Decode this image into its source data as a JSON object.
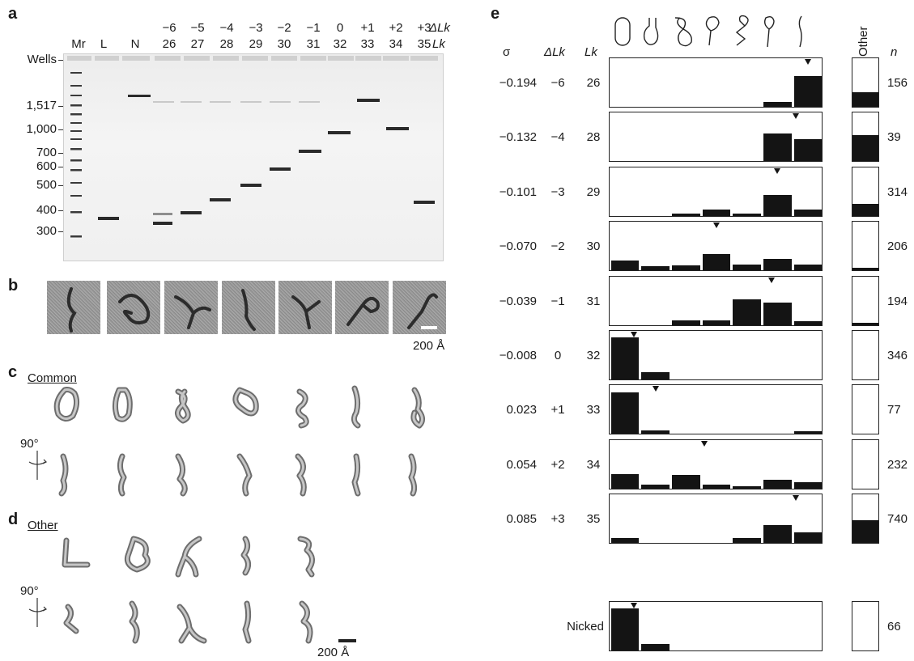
{
  "panel_labels": {
    "a": "a",
    "b": "b",
    "c": "c",
    "d": "d",
    "e": "e"
  },
  "panel_a": {
    "delta_lk_values": [
      "−6",
      "−5",
      "−4",
      "−3",
      "−2",
      "−1",
      "0",
      "+1",
      "+2",
      "+3"
    ],
    "delta_lk_header": "ΔLk",
    "lk_header": "Lk",
    "lane_labels": [
      "Mr",
      "L",
      "N",
      "26",
      "27",
      "28",
      "29",
      "30",
      "31",
      "32",
      "33",
      "34",
      "35"
    ],
    "size_markers": [
      "Wells",
      "1,517",
      "1,000",
      "700",
      "600",
      "500",
      "400",
      "300"
    ]
  },
  "panel_b": {
    "scale_label": "200 Å"
  },
  "panel_c": {
    "title": "Common",
    "rotation_label": "90°"
  },
  "panel_d": {
    "title": "Other",
    "rotation_label": "90°",
    "scale_label": "200 Å"
  },
  "panel_e": {
    "headers": {
      "sigma": "σ",
      "delta_lk": "ΔLk",
      "lk": "Lk",
      "other": "Other",
      "n": "n"
    },
    "shape_icons": [
      "open-circle-icon",
      "handled-loop-icon",
      "figure-eight-icon",
      "racquet-icon",
      "supercoil-loop-icon",
      "long-racquet-icon",
      "rod-icon"
    ],
    "rows": [
      {
        "sigma": "−0.194",
        "dlk": "−6",
        "lk": "26",
        "n": "156",
        "bars": [
          0,
          0,
          0,
          0,
          0,
          0.1,
          0.65
        ],
        "marker": 6.0,
        "other": 0.3
      },
      {
        "sigma": "−0.132",
        "dlk": "−4",
        "lk": "28",
        "n": "39",
        "bars": [
          0,
          0,
          0,
          0,
          0,
          0.58,
          0.47
        ],
        "marker": 5.6,
        "other": 0.55
      },
      {
        "sigma": "−0.101",
        "dlk": "−3",
        "lk": "29",
        "n": "314",
        "bars": [
          0,
          0,
          0.05,
          0.14,
          0.05,
          0.44,
          0.14
        ],
        "marker": 5.0,
        "other": 0.25
      },
      {
        "sigma": "−0.070",
        "dlk": "−2",
        "lk": "30",
        "n": "206",
        "bars": [
          0.2,
          0.09,
          0.1,
          0.35,
          0.13,
          0.24,
          0.13
        ],
        "marker": 3.0,
        "other": 0.05
      },
      {
        "sigma": "−0.039",
        "dlk": "−1",
        "lk": "31",
        "n": "194",
        "bars": [
          0,
          0,
          0.1,
          0.1,
          0.53,
          0.47,
          0.08
        ],
        "marker": 4.8,
        "other": 0.05
      },
      {
        "sigma": "−0.008",
        "dlk": "0",
        "lk": "32",
        "n": "346",
        "bars": [
          0.88,
          0.15,
          0,
          0,
          0,
          0,
          0
        ],
        "marker": 0.3,
        "other": 0
      },
      {
        "sigma": "0.023",
        "dlk": "+1",
        "lk": "33",
        "n": "77",
        "bars": [
          0.87,
          0.08,
          0,
          0,
          0,
          0,
          0.06
        ],
        "marker": 1.0,
        "other": 0
      },
      {
        "sigma": "0.054",
        "dlk": "+2",
        "lk": "34",
        "n": "232",
        "bars": [
          0.31,
          0.08,
          0.29,
          0.08,
          0.04,
          0.18,
          0.14
        ],
        "marker": 2.6,
        "other": 0
      },
      {
        "sigma": "0.085",
        "dlk": "+3",
        "lk": "35",
        "n": "740",
        "bars": [
          0.1,
          0,
          0,
          0,
          0.1,
          0.37,
          0.22
        ],
        "marker": 5.6,
        "other": 0.48
      }
    ],
    "nicked": {
      "label": "Nicked",
      "n": "66",
      "bars": [
        0.88,
        0.14,
        0,
        0,
        0,
        0,
        0
      ],
      "marker": 0.3,
      "other": 0
    }
  }
}
